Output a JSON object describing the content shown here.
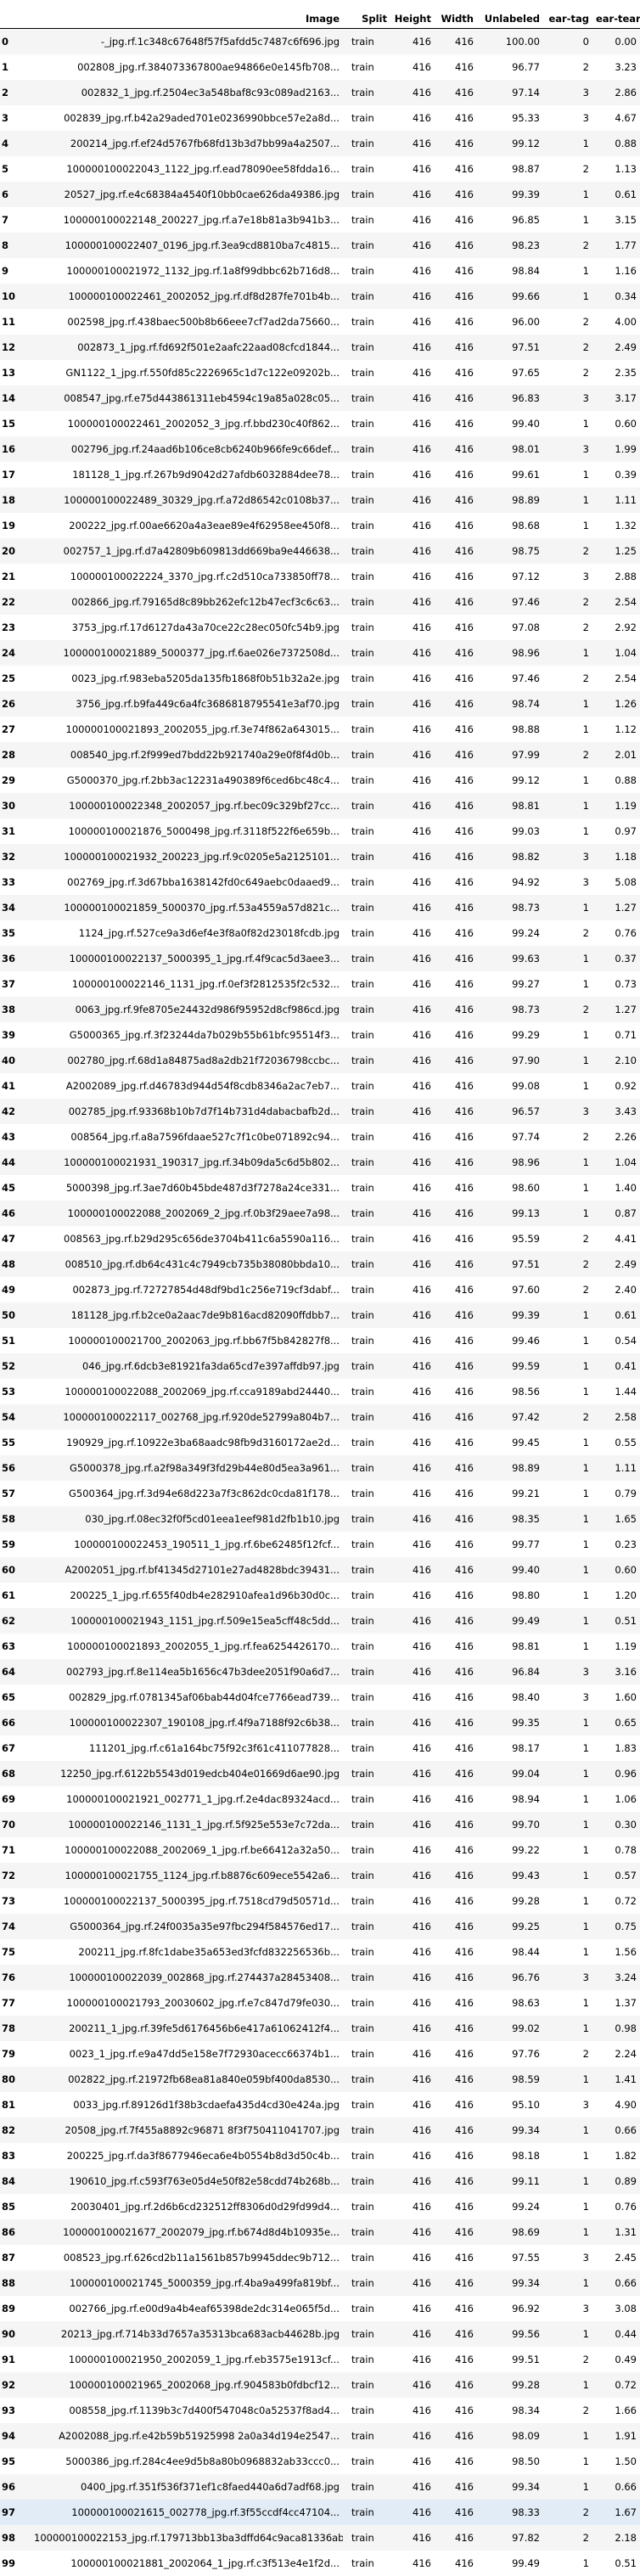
{
  "columns": [
    "",
    "Image",
    "Split",
    "Height",
    "Width",
    "Unlabeled",
    "ear-tag",
    "ear-tear"
  ],
  "rows": [
    [
      "0",
      "-_jpg.rf.1c348c67648f57f5afdd5c7487c6f696.jpg",
      "train",
      "416",
      "416",
      "100.00",
      "0",
      "0.00"
    ],
    [
      "1",
      "002808_jpg.rf.384073367800ae94866e0e145fb708...",
      "train",
      "416",
      "416",
      "96.77",
      "2",
      "3.23"
    ],
    [
      "2",
      "002832_1_jpg.rf.2504ec3a548baf8c93c089ad2163...",
      "train",
      "416",
      "416",
      "97.14",
      "3",
      "2.86"
    ],
    [
      "3",
      "002839_jpg.rf.b42a29aded701e0236990bbce57e2a8d...",
      "train",
      "416",
      "416",
      "95.33",
      "3",
      "4.67"
    ],
    [
      "4",
      "200214_jpg.rf.ef24d5767fb68fd13b3d7bb99a4a2507...",
      "train",
      "416",
      "416",
      "99.12",
      "1",
      "0.88"
    ],
    [
      "5",
      "100000100022043_1122_jpg.rf.ead78090ee58fdda16...",
      "train",
      "416",
      "416",
      "98.87",
      "2",
      "1.13"
    ],
    [
      "6",
      "20527_jpg.rf.e4c68384a4540f10bb0cae626da49386.jpg",
      "train",
      "416",
      "416",
      "99.39",
      "1",
      "0.61"
    ],
    [
      "7",
      "100000100022148_200227_jpg.rf.a7e18b81a3b941b3...",
      "train",
      "416",
      "416",
      "96.85",
      "1",
      "3.15"
    ],
    [
      "8",
      "100000100022407_0196_jpg.rf.3ea9cd8810ba7c4815...",
      "train",
      "416",
      "416",
      "98.23",
      "2",
      "1.77"
    ],
    [
      "9",
      "100000100021972_1132_jpg.rf.1a8f99dbbc62b716d8...",
      "train",
      "416",
      "416",
      "98.84",
      "1",
      "1.16"
    ],
    [
      "10",
      "100000100022461_2002052_jpg.rf.df8d287fe701b4b...",
      "train",
      "416",
      "416",
      "99.66",
      "1",
      "0.34"
    ],
    [
      "11",
      "002598_jpg.rf.438baec500b8b66eee7cf7ad2da75660...",
      "train",
      "416",
      "416",
      "96.00",
      "2",
      "4.00"
    ],
    [
      "12",
      "002873_1_jpg.rf.fd692f501e2aafc22aad08cfcd1844...",
      "train",
      "416",
      "416",
      "97.51",
      "2",
      "2.49"
    ],
    [
      "13",
      "GN1122_1_jpg.rf.550fd85c2226965c1d7c122e09202b...",
      "train",
      "416",
      "416",
      "97.65",
      "2",
      "2.35"
    ],
    [
      "14",
      "008547_jpg.rf.e75d443861311eb4594c19a85a028c05...",
      "train",
      "416",
      "416",
      "96.83",
      "3",
      "3.17"
    ],
    [
      "15",
      "100000100022461_2002052_3_jpg.rf.bbd230c40f862...",
      "train",
      "416",
      "416",
      "99.40",
      "1",
      "0.60"
    ],
    [
      "16",
      "002796_jpg.rf.24aad6b106ce8cb6240b966fe9c66def...",
      "train",
      "416",
      "416",
      "98.01",
      "3",
      "1.99"
    ],
    [
      "17",
      "181128_1_jpg.rf.267b9d9042d27afdb6032884dee78...",
      "train",
      "416",
      "416",
      "99.61",
      "1",
      "0.39"
    ],
    [
      "18",
      "100000100022489_30329_jpg.rf.a72d86542c0108b37...",
      "train",
      "416",
      "416",
      "98.89",
      "1",
      "1.11"
    ],
    [
      "19",
      "200222_jpg.rf.00ae6620a4a3eae89e4f62958ee450f8...",
      "train",
      "416",
      "416",
      "98.68",
      "1",
      "1.32"
    ],
    [
      "20",
      "002757_1_jpg.rf.d7a42809b609813dd669ba9e446638...",
      "train",
      "416",
      "416",
      "98.75",
      "2",
      "1.25"
    ],
    [
      "21",
      "100000100022224_3370_jpg.rf.c2d510ca733850ff78...",
      "train",
      "416",
      "416",
      "97.12",
      "3",
      "2.88"
    ],
    [
      "22",
      "002866_jpg.rf.79165d8c89bb262efc12b47ecf3c6c63...",
      "train",
      "416",
      "416",
      "97.46",
      "2",
      "2.54"
    ],
    [
      "23",
      "3753_jpg.rf.17d6127da43a70ce22c28ec050fc54b9.jpg",
      "train",
      "416",
      "416",
      "97.08",
      "2",
      "2.92"
    ],
    [
      "24",
      "100000100021889_5000377_jpg.rf.6ae026e7372508d...",
      "train",
      "416",
      "416",
      "98.96",
      "1",
      "1.04"
    ],
    [
      "25",
      "0023_jpg.rf.983eba5205da135fb1868f0b51b32a2e.jpg",
      "train",
      "416",
      "416",
      "97.46",
      "2",
      "2.54"
    ],
    [
      "26",
      "3756_jpg.rf.b9fa449c6a4fc3686818795541e3af70.jpg",
      "train",
      "416",
      "416",
      "98.74",
      "1",
      "1.26"
    ],
    [
      "27",
      "100000100021893_2002055_jpg.rf.3e74f862a643015...",
      "train",
      "416",
      "416",
      "98.88",
      "1",
      "1.12"
    ],
    [
      "28",
      "008540_jpg.rf.2f999ed7bdd22b921740a29e0f8f4d0b...",
      "train",
      "416",
      "416",
      "97.99",
      "2",
      "2.01"
    ],
    [
      "29",
      "G5000370_jpg.rf.2bb3ac12231a490389f6ced6bc48c4...",
      "train",
      "416",
      "416",
      "99.12",
      "1",
      "0.88"
    ],
    [
      "30",
      "100000100022348_2002057_jpg.rf.bec09c329bf27cc...",
      "train",
      "416",
      "416",
      "98.81",
      "1",
      "1.19"
    ],
    [
      "31",
      "100000100021876_5000498_jpg.rf.3118f522f6e659b...",
      "train",
      "416",
      "416",
      "99.03",
      "1",
      "0.97"
    ],
    [
      "32",
      "100000100021932_200223_jpg.rf.9c0205e5a2125101...",
      "train",
      "416",
      "416",
      "98.82",
      "3",
      "1.18"
    ],
    [
      "33",
      "002769_jpg.rf.3d67bba1638142fd0c649aebc0daaed9...",
      "train",
      "416",
      "416",
      "94.92",
      "3",
      "5.08"
    ],
    [
      "34",
      "100000100021859_5000370_jpg.rf.53a4559a57d821c...",
      "train",
      "416",
      "416",
      "98.73",
      "1",
      "1.27"
    ],
    [
      "35",
      "1124_jpg.rf.527ce9a3d6ef4e3f8a0f82d23018fcdb.jpg",
      "train",
      "416",
      "416",
      "99.24",
      "2",
      "0.76"
    ],
    [
      "36",
      "100000100022137_5000395_1_jpg.rf.4f9cac5d3aee3...",
      "train",
      "416",
      "416",
      "99.63",
      "1",
      "0.37"
    ],
    [
      "37",
      "100000100022146_1131_jpg.rf.0ef3f2812535f2c532...",
      "train",
      "416",
      "416",
      "99.27",
      "1",
      "0.73"
    ],
    [
      "38",
      "0063_jpg.rf.9fe8705e24432d986f95952d8cf986cd.jpg",
      "train",
      "416",
      "416",
      "98.73",
      "2",
      "1.27"
    ],
    [
      "39",
      "G5000365_jpg.rf.3f23244da7b029b55b61bfc95514f3...",
      "train",
      "416",
      "416",
      "99.29",
      "1",
      "0.71"
    ],
    [
      "40",
      "002780_jpg.rf.68d1a84875ad8a2db21f72036798ccbc...",
      "train",
      "416",
      "416",
      "97.90",
      "1",
      "2.10"
    ],
    [
      "41",
      "A2002089_jpg.rf.d46783d944d54f8cdb8346a2ac7eb7...",
      "train",
      "416",
      "416",
      "99.08",
      "1",
      "0.92"
    ],
    [
      "42",
      "002785_jpg.rf.93368b10b7d7f14b731d4dabacbafb2d...",
      "train",
      "416",
      "416",
      "96.57",
      "3",
      "3.43"
    ],
    [
      "43",
      "008564_jpg.rf.a8a7596fdaae527c7f1c0be071892c94...",
      "train",
      "416",
      "416",
      "97.74",
      "2",
      "2.26"
    ],
    [
      "44",
      "100000100021931_190317_jpg.rf.34b09da5c6d5b802...",
      "train",
      "416",
      "416",
      "98.96",
      "1",
      "1.04"
    ],
    [
      "45",
      "5000398_jpg.rf.3ae7d60b45bde487d3f7278a24ce331...",
      "train",
      "416",
      "416",
      "98.60",
      "1",
      "1.40"
    ],
    [
      "46",
      "100000100022088_2002069_2_jpg.rf.0b3f29aee7a98...",
      "train",
      "416",
      "416",
      "99.13",
      "1",
      "0.87"
    ],
    [
      "47",
      "008563_jpg.rf.b29d295c656de3704b411c6a5590a116...",
      "train",
      "416",
      "416",
      "95.59",
      "2",
      "4.41"
    ],
    [
      "48",
      "008510_jpg.rf.db64c431c4c7949cb735b38080bbda10...",
      "train",
      "416",
      "416",
      "97.51",
      "2",
      "2.49"
    ],
    [
      "49",
      "002873_jpg.rf.72727854d48df9bd1c256e719cf3dabf...",
      "train",
      "416",
      "416",
      "97.60",
      "2",
      "2.40"
    ],
    [
      "50",
      "181128_jpg.rf.b2ce0a2aac7de9b816acd82090ffdbb7...",
      "train",
      "416",
      "416",
      "99.39",
      "1",
      "0.61"
    ],
    [
      "51",
      "100000100021700_2002063_jpg.rf.bb67f5b842827f8...",
      "train",
      "416",
      "416",
      "99.46",
      "1",
      "0.54"
    ],
    [
      "52",
      "046_jpg.rf.6dcb3e81921fa3da65cd7e397affdb97.jpg",
      "train",
      "416",
      "416",
      "99.59",
      "1",
      "0.41"
    ],
    [
      "53",
      "100000100022088_2002069_jpg.rf.cca9189abd24440...",
      "train",
      "416",
      "416",
      "98.56",
      "1",
      "1.44"
    ],
    [
      "54",
      "100000100022117_002768_jpg.rf.920de52799a804b7...",
      "train",
      "416",
      "416",
      "97.42",
      "2",
      "2.58"
    ],
    [
      "55",
      "190929_jpg.rf.10922e3ba68aadc98fb9d3160172ae2d...",
      "train",
      "416",
      "416",
      "99.45",
      "1",
      "0.55"
    ],
    [
      "56",
      "G5000378_jpg.rf.a2f98a349f3fd29b44e80d5ea3a961...",
      "train",
      "416",
      "416",
      "98.89",
      "1",
      "1.11"
    ],
    [
      "57",
      "G500364_jpg.rf.3d94e68d223a7f3c862dc0cda81f178...",
      "train",
      "416",
      "416",
      "99.21",
      "1",
      "0.79"
    ],
    [
      "58",
      "030_jpg.rf.08ec32f0f5cd01eea1eef981d2fb1b10.jpg",
      "train",
      "416",
      "416",
      "98.35",
      "1",
      "1.65"
    ],
    [
      "59",
      "100000100022453_190511_1_jpg.rf.6be62485f12fcf...",
      "train",
      "416",
      "416",
      "99.77",
      "1",
      "0.23"
    ],
    [
      "60",
      "A2002051_jpg.rf.bf41345d27101e27ad4828bdc39431...",
      "train",
      "416",
      "416",
      "99.40",
      "1",
      "0.60"
    ],
    [
      "61",
      "200225_1_jpg.rf.655f40db4e282910afea1d96b30d0c...",
      "train",
      "416",
      "416",
      "98.80",
      "1",
      "1.20"
    ],
    [
      "62",
      "100000100021943_1151_jpg.rf.509e15ea5cff48c5dd...",
      "train",
      "416",
      "416",
      "99.49",
      "1",
      "0.51"
    ],
    [
      "63",
      "100000100021893_2002055_1_jpg.rf.fea6254426170...",
      "train",
      "416",
      "416",
      "98.81",
      "1",
      "1.19"
    ],
    [
      "64",
      "002793_jpg.rf.8e114ea5b1656c47b3dee2051f90a6d7...",
      "train",
      "416",
      "416",
      "96.84",
      "3",
      "3.16"
    ],
    [
      "65",
      "002829_jpg.rf.0781345af06bab44d04fce7766ead739...",
      "train",
      "416",
      "416",
      "98.40",
      "3",
      "1.60"
    ],
    [
      "66",
      "100000100022307_190108_jpg.rf.4f9a7188f92c6b38...",
      "train",
      "416",
      "416",
      "99.35",
      "1",
      "0.65"
    ],
    [
      "67",
      "111201_jpg.rf.c61a164bc75f92c3f61c411077828...",
      "train",
      "416",
      "416",
      "98.17",
      "1",
      "1.83"
    ],
    [
      "68",
      "12250_jpg.rf.6122b5543d019edcb404e01669d6ae90.jpg",
      "train",
      "416",
      "416",
      "99.04",
      "1",
      "0.96"
    ],
    [
      "69",
      "100000100021921_002771_1_jpg.rf.2e4dac89324acd...",
      "train",
      "416",
      "416",
      "98.94",
      "1",
      "1.06"
    ],
    [
      "70",
      "100000100022146_1131_1_jpg.rf.5f925e553e7c72da...",
      "train",
      "416",
      "416",
      "99.70",
      "1",
      "0.30"
    ],
    [
      "71",
      "100000100022088_2002069_1_jpg.rf.be66412a32a50...",
      "train",
      "416",
      "416",
      "99.22",
      "1",
      "0.78"
    ],
    [
      "72",
      "100000100021755_1124_jpg.rf.b8876c609ece5542a6...",
      "train",
      "416",
      "416",
      "99.43",
      "1",
      "0.57"
    ],
    [
      "73",
      "100000100022137_5000395_jpg.rf.7518cd79d50571d...",
      "train",
      "416",
      "416",
      "99.28",
      "1",
      "0.72"
    ],
    [
      "74",
      "G5000364_jpg.rf.24f0035a35e97fbc294f584576ed17...",
      "train",
      "416",
      "416",
      "99.25",
      "1",
      "0.75"
    ],
    [
      "75",
      "200211_jpg.rf.8fc1dabe35a653ed3fcfd832256536b...",
      "train",
      "416",
      "416",
      "98.44",
      "1",
      "1.56"
    ],
    [
      "76",
      "100000100022039_002868_jpg.rf.274437a28453408...",
      "train",
      "416",
      "416",
      "96.76",
      "3",
      "3.24"
    ],
    [
      "77",
      "100000100021793_20030602_jpg.rf.e7c847d79fe030...",
      "train",
      "416",
      "416",
      "98.63",
      "1",
      "1.37"
    ],
    [
      "78",
      "200211_1_jpg.rf.39fe5d6176456b6e417a61062412f4...",
      "train",
      "416",
      "416",
      "99.02",
      "1",
      "0.98"
    ],
    [
      "79",
      "0023_1_jpg.rf.e9a47dd5e158e7f72930acecc66374b1...",
      "train",
      "416",
      "416",
      "97.76",
      "2",
      "2.24"
    ],
    [
      "80",
      "002822_jpg.rf.21972fb68ea81a840e059bf400da8530...",
      "train",
      "416",
      "416",
      "98.59",
      "1",
      "1.41"
    ],
    [
      "81",
      "0033_jpg.rf.89126d1f38b3cdaefa435d4cd30e424a.jpg",
      "train",
      "416",
      "416",
      "95.10",
      "3",
      "4.90"
    ],
    [
      "82",
      "20508_jpg.rf.7f455a8892c96871 8f3f750411041707.jpg",
      "train",
      "416",
      "416",
      "99.34",
      "1",
      "0.66"
    ],
    [
      "83",
      "200225_jpg.rf.da3f8677946eca6e4b0554b8d3d50c4b...",
      "train",
      "416",
      "416",
      "98.18",
      "1",
      "1.82"
    ],
    [
      "84",
      "190610_jpg.rf.c593f763e05d4e50f82e58cdd74b268b...",
      "train",
      "416",
      "416",
      "99.11",
      "1",
      "0.89"
    ],
    [
      "85",
      "20030401_jpg.rf.2d6b6cd232512ff8306d0d29fd99d4...",
      "train",
      "416",
      "416",
      "99.24",
      "1",
      "0.76"
    ],
    [
      "86",
      "100000100021677_2002079_jpg.rf.b674d8d4b10935e...",
      "train",
      "416",
      "416",
      "98.69",
      "1",
      "1.31"
    ],
    [
      "87",
      "008523_jpg.rf.626cd2b11a1561b857b9945ddec9b712...",
      "train",
      "416",
      "416",
      "97.55",
      "3",
      "2.45"
    ],
    [
      "88",
      "100000100021745_5000359_jpg.rf.4ba9a499fa819bf...",
      "train",
      "416",
      "416",
      "99.34",
      "1",
      "0.66"
    ],
    [
      "89",
      "002766_jpg.rf.e00d9a4b4eaf65398de2dc314e065f5d...",
      "train",
      "416",
      "416",
      "96.92",
      "3",
      "3.08"
    ],
    [
      "90",
      "20213_jpg.rf.714b33d7657a35313bca683acb44628b.jpg",
      "train",
      "416",
      "416",
      "99.56",
      "1",
      "0.44"
    ],
    [
      "91",
      "100000100021950_2002059_1_jpg.rf.eb3575e1913cf...",
      "train",
      "416",
      "416",
      "99.51",
      "2",
      "0.49"
    ],
    [
      "92",
      "100000100021965_2002068_jpg.rf.904583b0fdbcf12...",
      "train",
      "416",
      "416",
      "99.28",
      "1",
      "0.72"
    ],
    [
      "93",
      "008558_jpg.rf.1139b3c7d400f547048c0a52537f8ad4...",
      "train",
      "416",
      "416",
      "98.34",
      "2",
      "1.66"
    ],
    [
      "94",
      "A2002088_jpg.rf.e42b59b51925998 2a0a34d194e2547...",
      "train",
      "416",
      "416",
      "98.09",
      "1",
      "1.91"
    ],
    [
      "95",
      "5000386_jpg.rf.284c4ee9d5b8a80b0968832ab33ccc0...",
      "train",
      "416",
      "416",
      "98.50",
      "1",
      "1.50"
    ],
    [
      "96",
      "0400_jpg.rf.351f536f371ef1c8faed440a6d7adf68.jpg",
      "train",
      "416",
      "416",
      "99.34",
      "1",
      "0.66"
    ],
    [
      "97",
      "100000100021615_002778_jpg.rf.3f55ccdf4cc47104...",
      "train",
      "416",
      "416",
      "98.33",
      "2",
      "1.67"
    ],
    [
      "98",
      "100000100022153_jpg.rf.179713bb13ba3dffd64c9aca81336ab1...",
      "train",
      "416",
      "416",
      "97.82",
      "2",
      "2.18"
    ],
    [
      "99",
      "100000100021881_2002064_1_jpg.rf.c3f513e4e1f2d...",
      "train",
      "416",
      "416",
      "99.49",
      "1",
      "0.51"
    ]
  ]
}
